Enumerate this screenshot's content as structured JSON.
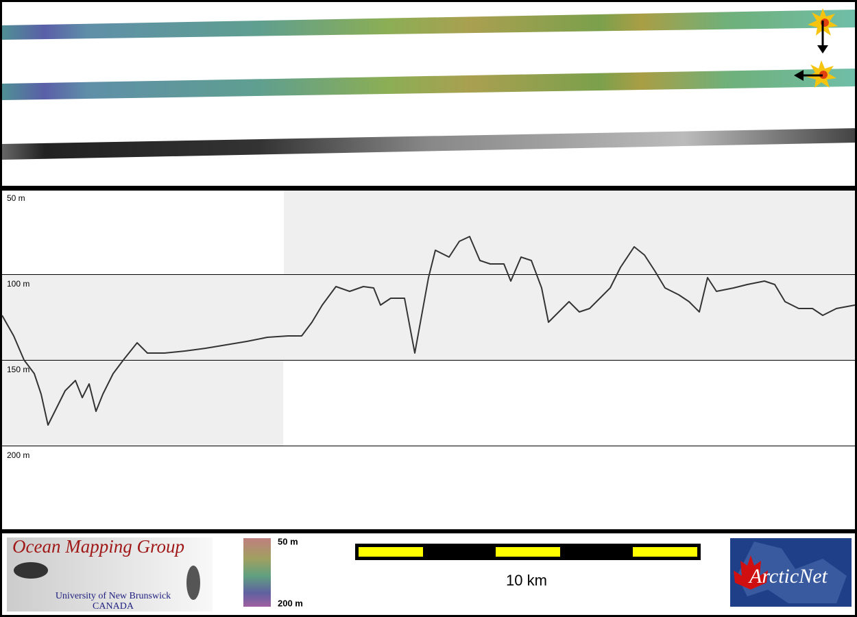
{
  "profile": {
    "depth_labels": [
      "50 m",
      "100 m",
      "150 m",
      "200 m"
    ]
  },
  "logo_left": {
    "title": "Ocean Mapping Group",
    "subtitle": "University of New Brunswick",
    "country": "CANADA"
  },
  "colorbar": {
    "top_label": "50 m",
    "bottom_label": "200 m"
  },
  "scale_bar": {
    "label": "10 km"
  },
  "logo_right": {
    "title": "ArcticNet"
  }
}
